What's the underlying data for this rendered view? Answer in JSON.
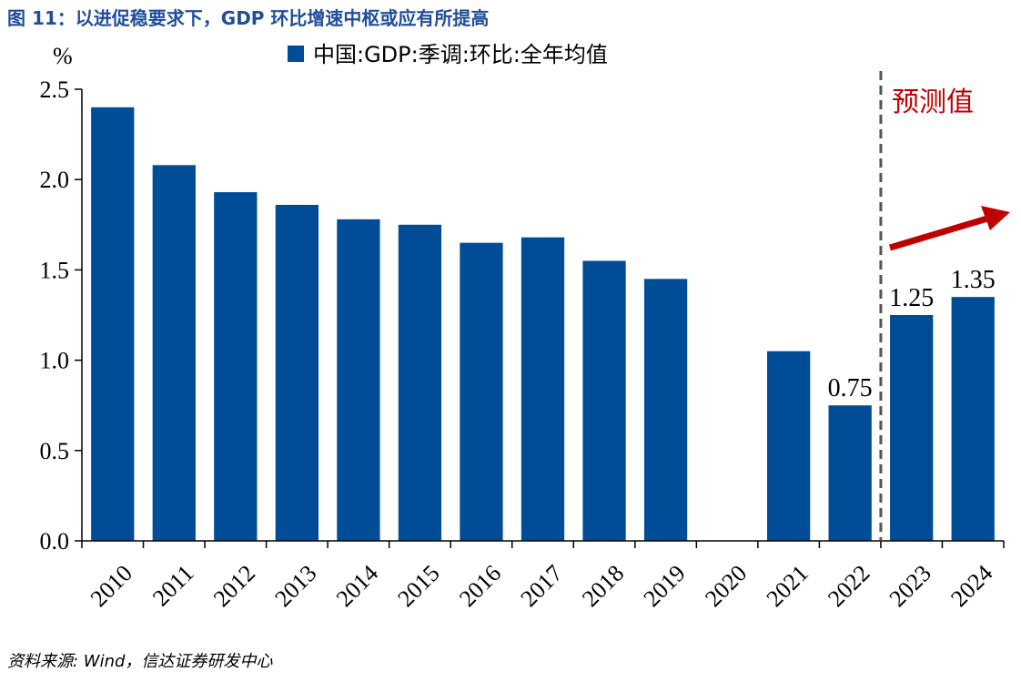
{
  "figure_title": "图 11：以进促稳要求下，GDP 环比增速中枢或应有所提高",
  "source": "资料来源: Wind，信达证券研发中心",
  "colors": {
    "bar": "#004c97",
    "title": "#1f4e9a",
    "forecast": "#c00000",
    "divider": "#555555"
  },
  "chart_data": {
    "type": "bar",
    "unit_label": "%",
    "categories": [
      "2010",
      "2011",
      "2012",
      "2013",
      "2014",
      "2015",
      "2016",
      "2017",
      "2018",
      "2019",
      "2020",
      "2021",
      "2022",
      "2023",
      "2024"
    ],
    "series": [
      {
        "name": "中国:GDP:季调:环比:全年均值",
        "values": [
          2.4,
          2.08,
          1.93,
          1.86,
          1.78,
          1.75,
          1.65,
          1.68,
          1.55,
          1.45,
          null,
          1.05,
          0.75,
          1.25,
          1.35
        ]
      }
    ],
    "data_labels": [
      {
        "category": "2022",
        "text": "0.75"
      },
      {
        "category": "2023",
        "text": "1.25"
      },
      {
        "category": "2024",
        "text": "1.35"
      }
    ],
    "ylim": [
      0,
      2.5
    ],
    "yticks": [
      "0.0",
      "0.5",
      "1.0",
      "1.5",
      "2.0",
      "2.5"
    ],
    "ytick_values": [
      0,
      0.5,
      1.0,
      1.5,
      2.0,
      2.5
    ],
    "forecast": {
      "label": "预测值",
      "start_category": "2023"
    },
    "legend_position": "top",
    "grid": false
  }
}
